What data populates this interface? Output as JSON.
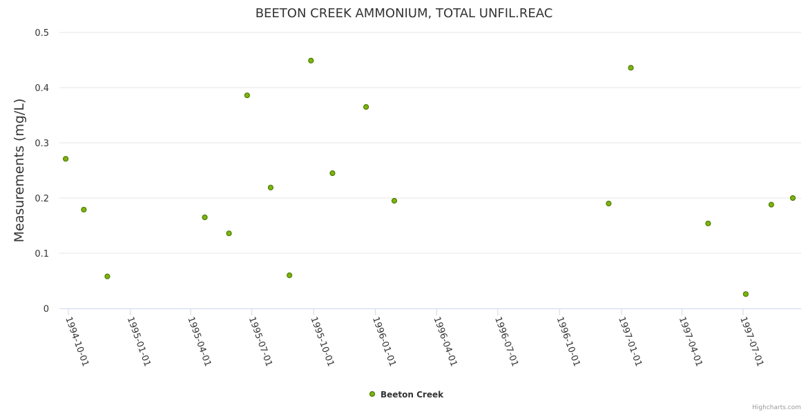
{
  "chart_data": {
    "type": "scatter",
    "title": "BEETON CREEK AMMONIUM, TOTAL UNFIL.REAC",
    "xlabel": "",
    "ylabel": "Measurements (mg/L)",
    "ylim": [
      0,
      0.5
    ],
    "yticks": [
      "0",
      "0.1",
      "0.2",
      "0.3",
      "0.4",
      "0.5"
    ],
    "xticks": [
      "1994-10-01",
      "1995-01-01",
      "1995-04-01",
      "1995-07-01",
      "1995-10-01",
      "1996-01-01",
      "1996-04-01",
      "1996-07-01",
      "1996-10-01",
      "1997-01-01",
      "1997-04-01",
      "1997-07-01"
    ],
    "grid": true,
    "legend_placement": "bottom-center",
    "series": [
      {
        "name": "Beeton Creek",
        "color": "#7cb50f",
        "points": [
          [
            "1994-09-27",
            0.271
          ],
          [
            "1994-10-24",
            0.179
          ],
          [
            "1994-11-28",
            0.058
          ],
          [
            "1995-04-22",
            0.165
          ],
          [
            "1995-05-28",
            0.136
          ],
          [
            "1995-06-24",
            0.386
          ],
          [
            "1995-07-29",
            0.219
          ],
          [
            "1995-08-26",
            0.06
          ],
          [
            "1995-09-27",
            0.449
          ],
          [
            "1995-10-29",
            0.245
          ],
          [
            "1995-12-18",
            0.365
          ],
          [
            "1996-01-29",
            0.195
          ],
          [
            "1996-12-13",
            0.19
          ],
          [
            "1997-01-15",
            0.436
          ],
          [
            "1997-05-10",
            0.154
          ],
          [
            "1997-07-05",
            0.026
          ],
          [
            "1997-08-12",
            0.188
          ],
          [
            "1997-09-13",
            0.2
          ]
        ]
      }
    ]
  },
  "credit": "Highcharts.com"
}
